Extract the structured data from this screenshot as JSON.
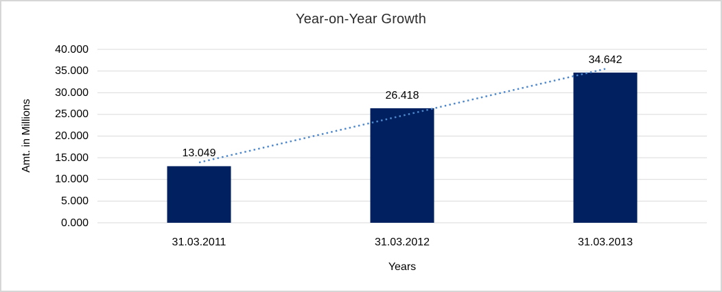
{
  "chart_data": {
    "type": "bar",
    "title": "Year-on-Year Growth",
    "xlabel": "Years",
    "ylabel": "Amt. in Millions",
    "categories": [
      "31.03.2011",
      "31.03.2012",
      "31.03.2013"
    ],
    "values": [
      13.049,
      26.418,
      34.642
    ],
    "data_labels": [
      "13.049",
      "26.418",
      "34.642"
    ],
    "y_tick_labels": [
      "0.000",
      "5.000",
      "10.000",
      "15.000",
      "20.000",
      "25.000",
      "30.000",
      "35.000",
      "40.000"
    ],
    "ylim": [
      0,
      40
    ],
    "y_tick_step": 5,
    "grid": true,
    "legend": "none",
    "bar_color": "#002060",
    "gridline_color": "#d9d9d9",
    "trendline": {
      "type": "linear",
      "style": "dotted",
      "color": "#4e88cc"
    }
  }
}
